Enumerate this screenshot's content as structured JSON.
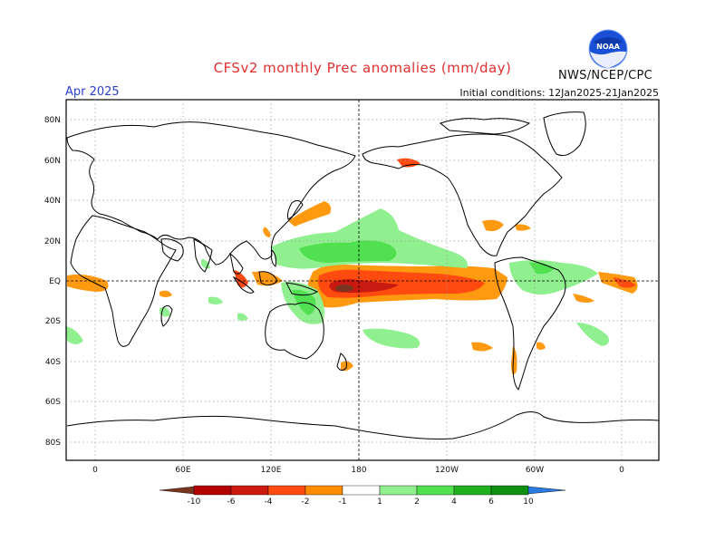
{
  "header": {
    "title": "CFSv2 monthly Prec anomalies (mm/day)",
    "month": "Apr 2025",
    "initial_conditions": "Initial conditions: 12Jan2025-21Jan2025",
    "agency": "NWS/NCEP/CPC",
    "logo_text": "NOAA"
  },
  "axes": {
    "lat_labels": [
      "80N",
      "60N",
      "40N",
      "20N",
      "EQ",
      "20S",
      "40S",
      "60S",
      "80S"
    ],
    "lon_labels": [
      "0",
      "60E",
      "120E",
      "180",
      "120W",
      "60W",
      "0"
    ]
  },
  "colorbar": {
    "labels": [
      "-10",
      "-6",
      "-4",
      "-2",
      "-1",
      "1",
      "2",
      "4",
      "6",
      "10"
    ],
    "colors": [
      "#7a3520",
      "#b30000",
      "#cc1a10",
      "#ff4a10",
      "#ff8c00",
      "#ffffff",
      "#90f090",
      "#50e050",
      "#20b020",
      "#109010",
      "#2b7ae0"
    ]
  },
  "colors": {
    "title": "#e03030",
    "month": "#2a3fd0",
    "dry_orange": "#ff9a10",
    "dry_red": "#ff4a10",
    "dry_dark": "#c81a10",
    "wet_light": "#90f090",
    "wet": "#50e050"
  }
}
